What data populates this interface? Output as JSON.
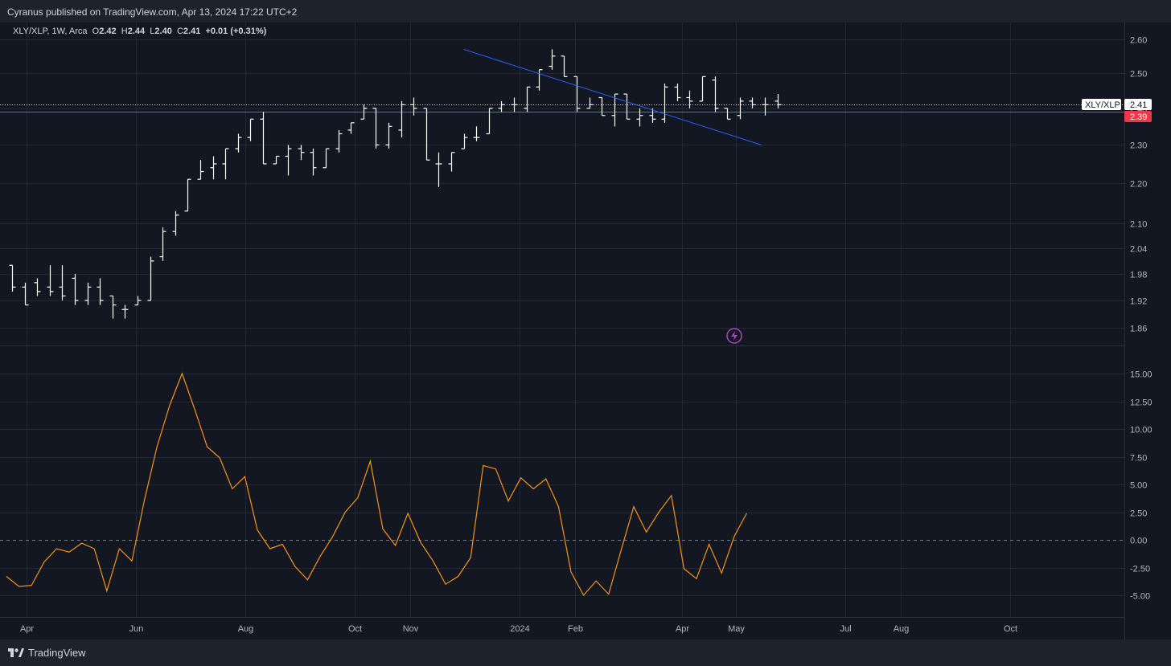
{
  "header": {
    "publisher": "Cyranus published on TradingView.com, Apr 13, 2024 17:22 UTC+2"
  },
  "legend": {
    "symbol": "XLY/XLP, 1W, Arca",
    "o_label": "O",
    "o_value": "2.42",
    "h_label": "H",
    "h_value": "2.44",
    "l_label": "L",
    "l_value": "2.40",
    "c_label": "C",
    "c_value": "2.41",
    "change": "+0.01 (+0.31%)"
  },
  "footer": {
    "brand": "TradingView"
  },
  "colors": {
    "background": "#131722",
    "grid": "#232734",
    "bars": "#ffffff",
    "trendline": "#2962ff",
    "support_line": "#f23645",
    "oscillator": "#f7931a",
    "zero_line": "#787b86"
  },
  "chart_data": [
    {
      "type": "ohlc",
      "title": "XLY/XLP, 1W, Arca",
      "y_scale": "log",
      "y_ticks": [
        "2.60",
        "2.50",
        "2.40",
        "2.30",
        "2.20",
        "2.10",
        "2.04",
        "1.98",
        "1.92",
        "1.86"
      ],
      "x_ticks": [
        "Apr",
        "Jun",
        "Aug",
        "Oct",
        "Nov",
        "2024",
        "Feb",
        "Apr",
        "May",
        "Jul",
        "Aug",
        "Oct"
      ],
      "price_label": {
        "name": "XLY/XLP",
        "value": "2.41"
      },
      "support_label": {
        "value": "2.39"
      },
      "support_level": 2.39,
      "trendline": {
        "from": {
          "date": "2023-12-01",
          "price": 2.57
        },
        "to": {
          "date": "2024-05-15",
          "price": 2.3
        }
      },
      "bars": [
        {
          "o": 2.0,
          "h": 2.0,
          "l": 1.94,
          "c": 1.95
        },
        {
          "o": 1.95,
          "h": 1.96,
          "l": 1.91,
          "c": 1.91
        },
        {
          "o": 1.96,
          "h": 1.97,
          "l": 1.93,
          "c": 1.94
        },
        {
          "o": 1.95,
          "h": 2.0,
          "l": 1.93,
          "c": 1.94
        },
        {
          "o": 1.95,
          "h": 2.0,
          "l": 1.92,
          "c": 1.93
        },
        {
          "o": 1.97,
          "h": 1.98,
          "l": 1.91,
          "c": 1.92
        },
        {
          "o": 1.92,
          "h": 1.96,
          "l": 1.91,
          "c": 1.95
        },
        {
          "o": 1.95,
          "h": 1.97,
          "l": 1.91,
          "c": 1.92
        },
        {
          "o": 1.93,
          "h": 1.93,
          "l": 1.88,
          "c": 1.91
        },
        {
          "o": 1.9,
          "h": 1.91,
          "l": 1.88,
          "c": 1.9
        },
        {
          "o": 1.91,
          "h": 1.93,
          "l": 1.91,
          "c": 1.92
        },
        {
          "o": 1.92,
          "h": 2.02,
          "l": 1.92,
          "c": 2.01
        },
        {
          "o": 2.02,
          "h": 2.09,
          "l": 2.01,
          "c": 2.08
        },
        {
          "o": 2.08,
          "h": 2.13,
          "l": 2.07,
          "c": 2.12
        },
        {
          "o": 2.13,
          "h": 2.21,
          "l": 2.13,
          "c": 2.21
        },
        {
          "o": 2.21,
          "h": 2.26,
          "l": 2.21,
          "c": 2.23
        },
        {
          "o": 2.24,
          "h": 2.27,
          "l": 2.21,
          "c": 2.25
        },
        {
          "o": 2.25,
          "h": 2.29,
          "l": 2.21,
          "c": 2.29
        },
        {
          "o": 2.29,
          "h": 2.33,
          "l": 2.28,
          "c": 2.32
        },
        {
          "o": 2.32,
          "h": 2.37,
          "l": 2.31,
          "c": 2.37
        },
        {
          "o": 2.37,
          "h": 2.39,
          "l": 2.25,
          "c": 2.25
        },
        {
          "o": 2.25,
          "h": 2.27,
          "l": 2.25,
          "c": 2.27
        },
        {
          "o": 2.27,
          "h": 2.3,
          "l": 2.22,
          "c": 2.29
        },
        {
          "o": 2.29,
          "h": 2.3,
          "l": 2.26,
          "c": 2.28
        },
        {
          "o": 2.28,
          "h": 2.29,
          "l": 2.22,
          "c": 2.24
        },
        {
          "o": 2.24,
          "h": 2.29,
          "l": 2.24,
          "c": 2.29
        },
        {
          "o": 2.29,
          "h": 2.34,
          "l": 2.28,
          "c": 2.33
        },
        {
          "o": 2.34,
          "h": 2.36,
          "l": 2.33,
          "c": 2.36
        },
        {
          "o": 2.37,
          "h": 2.41,
          "l": 2.37,
          "c": 2.4
        },
        {
          "o": 2.4,
          "h": 2.4,
          "l": 2.29,
          "c": 2.3
        },
        {
          "o": 2.3,
          "h": 2.36,
          "l": 2.29,
          "c": 2.35
        },
        {
          "o": 2.34,
          "h": 2.42,
          "l": 2.32,
          "c": 2.41
        },
        {
          "o": 2.41,
          "h": 2.43,
          "l": 2.38,
          "c": 2.4
        },
        {
          "o": 2.4,
          "h": 2.4,
          "l": 2.26,
          "c": 2.26
        },
        {
          "o": 2.25,
          "h": 2.28,
          "l": 2.19,
          "c": 2.25
        },
        {
          "o": 2.25,
          "h": 2.28,
          "l": 2.23,
          "c": 2.28
        },
        {
          "o": 2.29,
          "h": 2.33,
          "l": 2.29,
          "c": 2.32
        },
        {
          "o": 2.32,
          "h": 2.35,
          "l": 2.31,
          "c": 2.32
        },
        {
          "o": 2.33,
          "h": 2.4,
          "l": 2.33,
          "c": 2.4
        },
        {
          "o": 2.4,
          "h": 2.42,
          "l": 2.39,
          "c": 2.41
        },
        {
          "o": 2.41,
          "h": 2.43,
          "l": 2.39,
          "c": 2.41
        },
        {
          "o": 2.4,
          "h": 2.46,
          "l": 2.39,
          "c": 2.46
        },
        {
          "o": 2.46,
          "h": 2.51,
          "l": 2.45,
          "c": 2.51
        },
        {
          "o": 2.52,
          "h": 2.57,
          "l": 2.51,
          "c": 2.55
        },
        {
          "o": 2.55,
          "h": 2.55,
          "l": 2.49,
          "c": 2.49
        },
        {
          "o": 2.49,
          "h": 2.49,
          "l": 2.39,
          "c": 2.4
        },
        {
          "o": 2.4,
          "h": 2.43,
          "l": 2.4,
          "c": 2.41
        },
        {
          "o": 2.43,
          "h": 2.43,
          "l": 2.38,
          "c": 2.38
        },
        {
          "o": 2.38,
          "h": 2.44,
          "l": 2.35,
          "c": 2.44
        },
        {
          "o": 2.44,
          "h": 2.44,
          "l": 2.37,
          "c": 2.37
        },
        {
          "o": 2.37,
          "h": 2.4,
          "l": 2.35,
          "c": 2.38
        },
        {
          "o": 2.38,
          "h": 2.4,
          "l": 2.36,
          "c": 2.37
        },
        {
          "o": 2.37,
          "h": 2.47,
          "l": 2.36,
          "c": 2.46
        },
        {
          "o": 2.46,
          "h": 2.47,
          "l": 2.42,
          "c": 2.43
        },
        {
          "o": 2.43,
          "h": 2.45,
          "l": 2.4,
          "c": 2.42
        },
        {
          "o": 2.42,
          "h": 2.49,
          "l": 2.42,
          "c": 2.49
        },
        {
          "o": 2.48,
          "h": 2.49,
          "l": 2.39,
          "c": 2.4
        },
        {
          "o": 2.4,
          "h": 2.4,
          "l": 2.37,
          "c": 2.37
        },
        {
          "o": 2.38,
          "h": 2.43,
          "l": 2.37,
          "c": 2.42
        },
        {
          "o": 2.42,
          "h": 2.43,
          "l": 2.4,
          "c": 2.41
        },
        {
          "o": 2.41,
          "h": 2.43,
          "l": 2.38,
          "c": 2.41
        },
        {
          "o": 2.42,
          "h": 2.44,
          "l": 2.4,
          "c": 2.41
        }
      ]
    },
    {
      "type": "line",
      "title": "",
      "y_ticks": [
        "15.00",
        "12.50",
        "10.00",
        "7.50",
        "5.00",
        "2.50",
        "0.00",
        "-2.50",
        "-5.00"
      ],
      "zero_line": 0,
      "values": [
        -3.3,
        -4.2,
        -4.1,
        -2.0,
        -0.8,
        -1.1,
        -0.3,
        -0.8,
        -4.6,
        -0.8,
        -1.9,
        3.6,
        8.4,
        12.1,
        15.0,
        11.8,
        8.4,
        7.4,
        4.6,
        5.7,
        0.9,
        -0.8,
        -0.4,
        -2.4,
        -3.6,
        -1.5,
        0.3,
        2.5,
        3.8,
        7.1,
        1.0,
        -0.5,
        2.4,
        -0.2,
        -1.9,
        -4.0,
        -3.3,
        -1.6,
        6.7,
        6.4,
        3.5,
        5.6,
        4.6,
        5.5,
        3.0,
        -2.9,
        -5.0,
        -3.7,
        -4.9,
        -0.9,
        3.0,
        0.7,
        2.5,
        4.0,
        -2.6,
        -3.5,
        -0.4,
        -3.0,
        0.3,
        2.4
      ]
    }
  ]
}
